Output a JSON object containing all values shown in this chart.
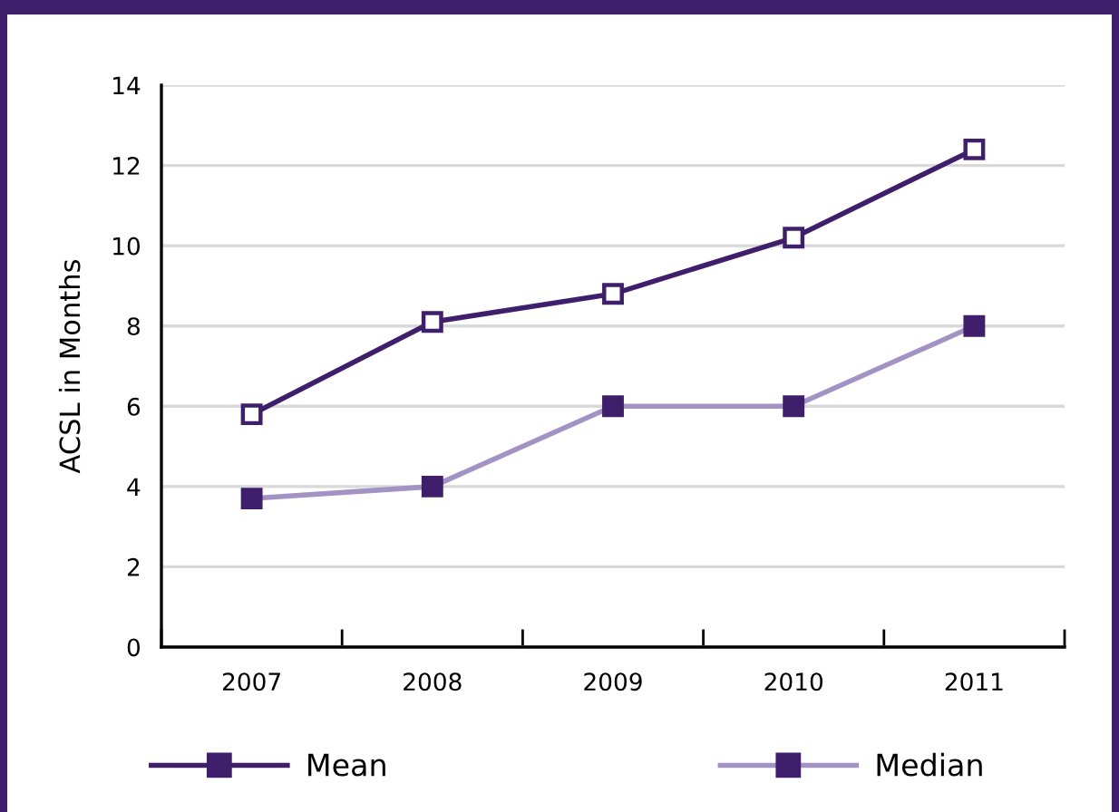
{
  "chart_data": {
    "type": "line",
    "ylabel": "ACSL in Months",
    "categories": [
      "2007",
      "2008",
      "2009",
      "2010",
      "2011"
    ],
    "series": [
      {
        "name": "Mean",
        "color": "#3f1f6b",
        "values": [
          5.8,
          8.1,
          8.8,
          10.2,
          12.4
        ]
      },
      {
        "name": "Median",
        "color": "#a392c4",
        "values": [
          3.7,
          4.0,
          6.0,
          6.0,
          8.0
        ]
      }
    ],
    "ylim": [
      0,
      14
    ],
    "yticks": [
      0,
      2,
      4,
      6,
      8,
      10,
      12,
      14
    ],
    "grid": "y",
    "legend": "bottom",
    "marker": "square",
    "line_style": "solid"
  }
}
